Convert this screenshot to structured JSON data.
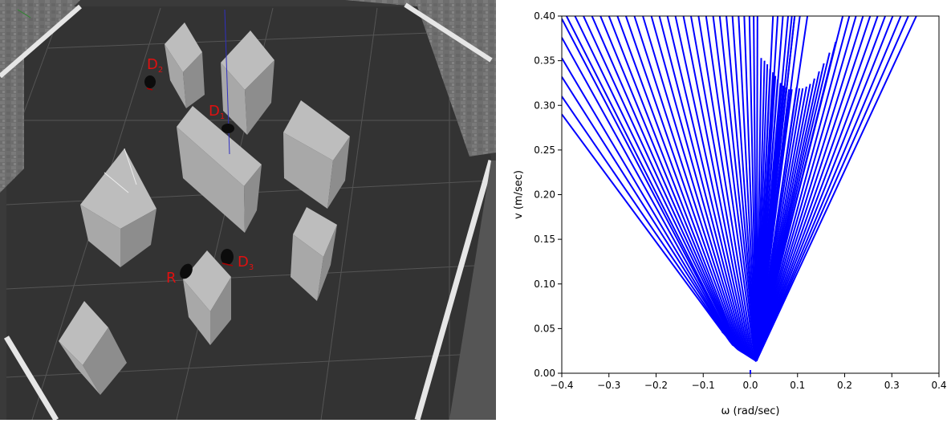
{
  "scene": {
    "labels": [
      {
        "id": "D2",
        "letter": "D",
        "sub": "2"
      },
      {
        "id": "D1",
        "letter": "D",
        "sub": "1"
      },
      {
        "id": "D3",
        "letter": "D",
        "sub": "3"
      },
      {
        "id": "R",
        "letter": "R",
        "sub": ""
      }
    ],
    "label_color": "#e01010"
  },
  "chart_data": {
    "type": "line",
    "xlabel": "ω (rad/sec)",
    "ylabel": "v (m/sec)",
    "xlim": [
      -0.4,
      0.4
    ],
    "ylim": [
      0.0,
      0.4
    ],
    "xticks": [
      "−0.4",
      "−0.3",
      "−0.2",
      "−0.1",
      "0.0",
      "0.1",
      "0.2",
      "0.3",
      "0.4"
    ],
    "yticks": [
      "0.00",
      "0.05",
      "0.10",
      "0.15",
      "0.20",
      "0.25",
      "0.30",
      "0.35",
      "0.40"
    ],
    "line_color": "#0000ff",
    "grid": false,
    "description_unused": "",
    "series_left_bottoms": [
      [
        -0.06,
        0.047
      ],
      [
        -0.056,
        0.045
      ],
      [
        -0.051,
        0.042
      ],
      [
        -0.047,
        0.039
      ],
      [
        -0.043,
        0.036
      ],
      [
        -0.04,
        0.034
      ],
      [
        -0.037,
        0.032
      ],
      [
        -0.034,
        0.031
      ],
      [
        -0.032,
        0.03
      ],
      [
        -0.03,
        0.029
      ],
      [
        -0.028,
        0.028
      ],
      [
        -0.026,
        0.027
      ],
      [
        -0.023,
        0.026
      ],
      [
        -0.02,
        0.025
      ],
      [
        -0.017,
        0.024
      ],
      [
        -0.014,
        0.023
      ],
      [
        -0.011,
        0.022
      ],
      [
        -0.008,
        0.021
      ],
      [
        -0.005,
        0.02
      ],
      [
        -0.002,
        0.019
      ],
      [
        0.001,
        0.018
      ],
      [
        0.004,
        0.017
      ],
      [
        0.007,
        0.016
      ],
      [
        0.01,
        0.015
      ],
      [
        0.012,
        0.014
      ],
      [
        0.013,
        0.014
      ],
      [
        0.013,
        0.014
      ],
      [
        0.013,
        0.014
      ],
      [
        0.013,
        0.014
      ],
      [
        0.013,
        0.014
      ],
      [
        0.013,
        0.014
      ],
      [
        0.013,
        0.014
      ],
      [
        0.013,
        0.014
      ],
      [
        0.013,
        0.014
      ],
      [
        0.013,
        0.014
      ],
      [
        0.013,
        0.014
      ],
      [
        0.013,
        0.014
      ],
      [
        0.013,
        0.014
      ],
      [
        0.013,
        0.014
      ],
      [
        0.013,
        0.014
      ],
      [
        0.013,
        0.014
      ],
      [
        0.013,
        0.014
      ],
      [
        0.013,
        0.014
      ],
      [
        0.013,
        0.014
      ],
      [
        0.013,
        0.014
      ],
      [
        0.013,
        0.014
      ],
      [
        0.013,
        0.014
      ],
      [
        0.013,
        0.014
      ],
      [
        0.013,
        0.014
      ],
      [
        0.013,
        0.014
      ]
    ],
    "series_left_tops": [
      [
        -0.4,
        0.29
      ],
      [
        -0.4,
        0.31
      ],
      [
        -0.4,
        0.332
      ],
      [
        -0.4,
        0.353
      ],
      [
        -0.4,
        0.376
      ],
      [
        -0.4,
        0.397
      ],
      [
        -0.39,
        0.4
      ],
      [
        -0.372,
        0.4
      ],
      [
        -0.354,
        0.4
      ],
      [
        -0.336,
        0.4
      ],
      [
        -0.318,
        0.4
      ],
      [
        -0.3,
        0.4
      ],
      [
        -0.282,
        0.4
      ],
      [
        -0.264,
        0.4
      ],
      [
        -0.246,
        0.4
      ],
      [
        -0.228,
        0.4
      ],
      [
        -0.21,
        0.4
      ],
      [
        -0.193,
        0.4
      ],
      [
        -0.176,
        0.4
      ],
      [
        -0.159,
        0.4
      ],
      [
        -0.142,
        0.4
      ],
      [
        -0.126,
        0.4
      ],
      [
        -0.11,
        0.4
      ],
      [
        -0.094,
        0.4
      ],
      [
        -0.079,
        0.4
      ],
      [
        -0.065,
        0.4
      ],
      [
        -0.051,
        0.4
      ],
      [
        -0.038,
        0.4
      ],
      [
        -0.025,
        0.4
      ],
      [
        -0.013,
        0.4
      ],
      [
        -0.002,
        0.4
      ],
      [
        0.007,
        0.4
      ],
      [
        0.015,
        0.4
      ],
      [
        0.023,
        0.353
      ],
      [
        0.03,
        0.35
      ],
      [
        0.036,
        0.346
      ],
      [
        0.042,
        0.341
      ],
      [
        0.048,
        0.337
      ],
      [
        0.053,
        0.333
      ],
      [
        0.058,
        0.329
      ],
      [
        0.064,
        0.325
      ],
      [
        0.07,
        0.322
      ],
      [
        0.076,
        0.32
      ],
      [
        0.082,
        0.318
      ],
      [
        0.088,
        0.318
      ],
      [
        0.094,
        0.4
      ],
      [
        0.105,
        0.4
      ],
      [
        0.121,
        0.4
      ],
      [
        0.0,
        0.4
      ],
      [
        0.0,
        0.4
      ]
    ],
    "series_right": [
      [
        0.013,
        0.014,
        0.094,
        0.4
      ],
      [
        0.013,
        0.014,
        0.098,
        0.32
      ],
      [
        0.013,
        0.014,
        0.104,
        0.319
      ],
      [
        0.013,
        0.014,
        0.111,
        0.319
      ],
      [
        0.013,
        0.014,
        0.119,
        0.321
      ],
      [
        0.013,
        0.014,
        0.127,
        0.324
      ],
      [
        0.013,
        0.014,
        0.136,
        0.33
      ],
      [
        0.013,
        0.014,
        0.146,
        0.338
      ],
      [
        0.013,
        0.014,
        0.156,
        0.347
      ],
      [
        0.013,
        0.014,
        0.168,
        0.359
      ],
      [
        0.013,
        0.014,
        0.181,
        0.371
      ],
      [
        0.013,
        0.014,
        0.196,
        0.4
      ],
      [
        0.013,
        0.014,
        0.21,
        0.4
      ],
      [
        0.013,
        0.014,
        0.224,
        0.4
      ],
      [
        0.013,
        0.014,
        0.239,
        0.4
      ],
      [
        0.013,
        0.014,
        0.254,
        0.4
      ],
      [
        0.013,
        0.014,
        0.27,
        0.4
      ],
      [
        0.013,
        0.014,
        0.286,
        0.4
      ],
      [
        0.013,
        0.014,
        0.302,
        0.4
      ],
      [
        0.013,
        0.014,
        0.319,
        0.4
      ],
      [
        0.013,
        0.014,
        0.335,
        0.4
      ],
      [
        0.013,
        0.014,
        0.352,
        0.4
      ]
    ],
    "series_mid": [
      [
        0.013,
        0.014,
        0.048,
        0.4
      ],
      [
        0.013,
        0.014,
        0.058,
        0.4
      ],
      [
        0.013,
        0.014,
        0.069,
        0.4
      ],
      [
        0.013,
        0.014,
        0.08,
        0.4
      ],
      [
        0.013,
        0.014,
        0.088,
        0.4
      ]
    ],
    "marker": {
      "x": 0.0,
      "y": 0.0
    }
  }
}
